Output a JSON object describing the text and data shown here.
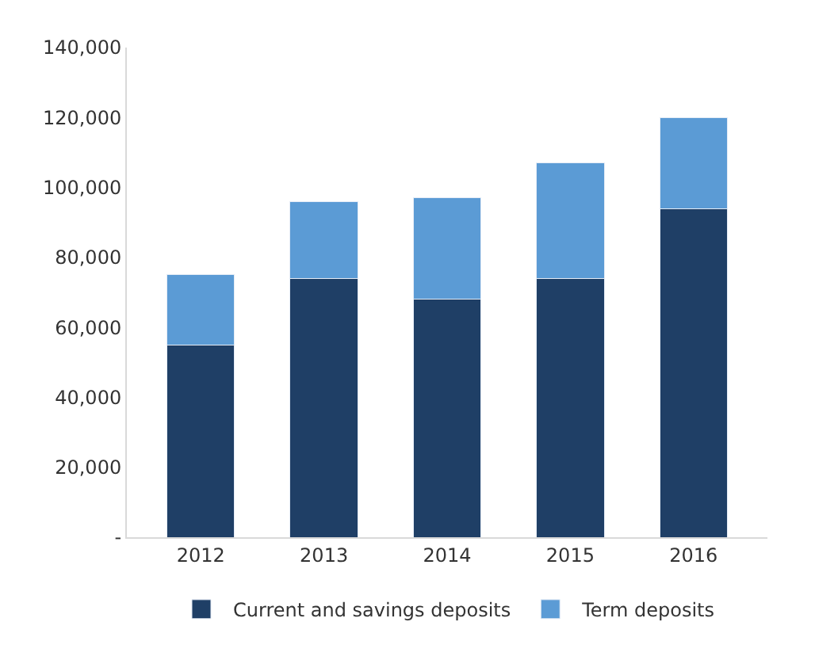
{
  "chart_data": {
    "type": "bar",
    "stacked": true,
    "categories": [
      "2012",
      "2013",
      "2014",
      "2015",
      "2016"
    ],
    "series": [
      {
        "name": "Current and savings deposits",
        "color": "#1f3f66",
        "values": [
          55000,
          74000,
          68000,
          74000,
          94000
        ]
      },
      {
        "name": "Term deposits",
        "color": "#5b9bd5",
        "values": [
          20000,
          22000,
          29000,
          33000,
          26000
        ]
      }
    ],
    "ylim": [
      0,
      140000
    ],
    "yticks": [
      {
        "value": 0,
        "label": "-"
      },
      {
        "value": 20000,
        "label": "20,000"
      },
      {
        "value": 40000,
        "label": "40,000"
      },
      {
        "value": 60000,
        "label": "60,000"
      },
      {
        "value": 80000,
        "label": "80,000"
      },
      {
        "value": 100000,
        "label": "100,000"
      },
      {
        "value": 120000,
        "label": "120,000"
      },
      {
        "value": 140000,
        "label": "140,000"
      }
    ],
    "legend": "bottom"
  }
}
